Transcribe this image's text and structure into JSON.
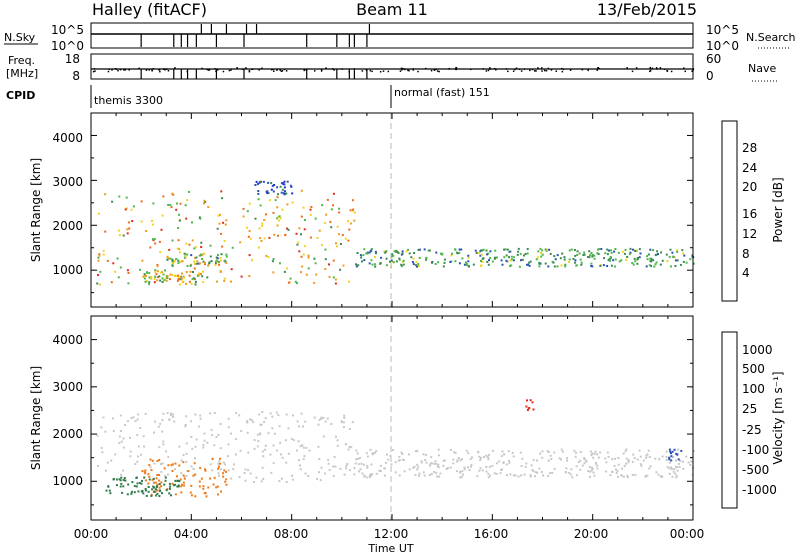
{
  "header": {
    "station": "Halley (fitACF)",
    "beam": "Beam 11",
    "date": "13/Feb/2015"
  },
  "strip_nsky": {
    "left_label": "N.Sky",
    "right_label": "N.Search",
    "left_ticks": [
      "10^5",
      "10^0"
    ],
    "right_ticks": [
      "10^5",
      "10^0"
    ]
  },
  "strip_freq": {
    "left_label_line1": "Freq.",
    "left_label_line2": "[MHz]",
    "right_label": "Nave",
    "left_ticks": [
      "18",
      "8"
    ],
    "right_ticks": [
      "60",
      "0"
    ]
  },
  "cpid": {
    "label": "CPID",
    "segments": [
      {
        "name": "themis 3300",
        "start_hour": 0
      },
      {
        "name": "normal (fast) 151",
        "start_hour": 12
      }
    ]
  },
  "x_axis": {
    "label": "Time UT",
    "range_hours": [
      0,
      24
    ],
    "ticks": [
      "00:00",
      "04:00",
      "08:00",
      "12:00",
      "16:00",
      "20:00",
      "00:00"
    ]
  },
  "power_panel": {
    "ylabel": "Slant Range [km]",
    "yticks": [
      "1000",
      "2000",
      "3000",
      "4000"
    ],
    "colorbar_label": "Power [dB]",
    "colorbar_ticks": [
      "4",
      "8",
      "12",
      "16",
      "20",
      "24",
      "28"
    ],
    "colors": [
      "#1c2ed8",
      "#2b50b8",
      "#3a8a4e",
      "#4cb84a",
      "#f2d21c",
      "#f39a1a",
      "#ee6a1c",
      "#e02a1a"
    ]
  },
  "velocity_panel": {
    "ylabel": "Slant Range [km]",
    "yticks": [
      "1000",
      "2000",
      "3000",
      "4000"
    ],
    "colorbar_label": "Velocity [m s⁻¹]",
    "colorbar_ticks": [
      "1000",
      "500",
      "100",
      "25",
      "-25",
      "-100",
      "-500",
      "-1000"
    ],
    "colors": [
      "#1c2ed8",
      "#2b50b8",
      "#2e7a4a",
      "#52c43e",
      "#c8c8c4",
      "#f0b020",
      "#ee7a18",
      "#e02a1a"
    ]
  },
  "chart_data": {
    "type": "heatmap",
    "x_range_hours": [
      0,
      24
    ],
    "y_range_km": [
      180,
      4500
    ],
    "panels": [
      {
        "name": "Power",
        "unit": "dB",
        "scatter_bands": [
          {
            "t_start": 0.2,
            "t_end": 10.5,
            "range_lo_km": 700,
            "range_hi_km": 2800,
            "peak_value": 28
          },
          {
            "t_start": 2.0,
            "t_end": 4.5,
            "range_lo_km": 700,
            "range_hi_km": 1000,
            "peak_value": 24
          },
          {
            "t_start": 3.0,
            "t_end": 5.5,
            "range_lo_km": 1100,
            "range_hi_km": 1400,
            "peak_value": 20
          },
          {
            "t_start": 10.5,
            "t_end": 24.0,
            "range_lo_km": 1100,
            "range_hi_km": 1500,
            "peak_value": 16
          },
          {
            "t_start": 6.5,
            "t_end": 8.0,
            "range_lo_km": 2700,
            "range_hi_km": 3000,
            "peak_value": 8
          }
        ]
      },
      {
        "name": "Velocity",
        "unit": "m s-1",
        "scatter_bands": [
          {
            "t_start": 0.2,
            "t_end": 10.5,
            "range_lo_km": 1000,
            "range_hi_km": 2500,
            "value": 0
          },
          {
            "t_start": 2.0,
            "t_end": 5.5,
            "range_lo_km": 700,
            "range_hi_km": 1500,
            "value": -500
          },
          {
            "t_start": 0.5,
            "t_end": 3.5,
            "range_lo_km": 700,
            "range_hi_km": 1100,
            "value": 100
          },
          {
            "t_start": 10.5,
            "t_end": 24.0,
            "range_lo_km": 1100,
            "range_hi_km": 1700,
            "value": 0
          },
          {
            "t_start": 17.3,
            "t_end": 17.6,
            "range_lo_km": 2500,
            "range_hi_km": 2800,
            "value": -1000
          },
          {
            "t_start": 23.0,
            "t_end": 23.5,
            "range_lo_km": 1400,
            "range_hi_km": 1700,
            "value": 500
          }
        ]
      }
    ]
  }
}
